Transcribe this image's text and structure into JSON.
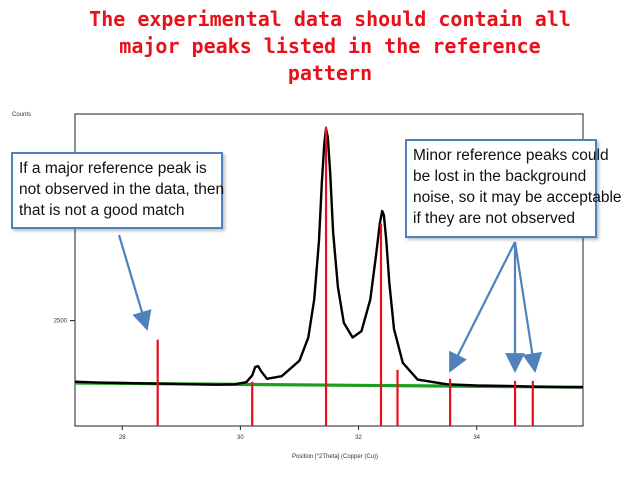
{
  "title": {
    "lines": [
      "The experimental data should contain all",
      "major peaks listed in the reference",
      "pattern"
    ]
  },
  "colors": {
    "title": "#e8101a",
    "experimental": "#000000",
    "background_line": "#1e9e1e",
    "reference": "#e8101a",
    "callout_border": "#4f81bd",
    "arrow": "#4f81bd"
  },
  "callouts": {
    "left": {
      "lines": [
        "If a major reference peak is",
        "not observed in the data, then",
        "that is not a good match"
      ]
    },
    "right": {
      "lines": [
        "Minor reference peaks could",
        "be lost in the background",
        "noise, so it may be acceptable",
        "if they are not observed"
      ]
    }
  },
  "chart_data": {
    "type": "line",
    "ylabel": "Counts",
    "xlabel": "Position [°2Theta] (Copper (Cu))",
    "xlim": [
      27.2,
      35.8
    ],
    "ylim": [
      0,
      7400
    ],
    "x_ticks": [
      "28",
      "30",
      "32",
      "34"
    ],
    "x_tick_values": [
      28,
      30,
      32,
      34
    ],
    "y_ticks": [
      "2500"
    ],
    "y_tick_values": [
      2500
    ],
    "grid": false,
    "series": [
      {
        "role": "experimental",
        "x": [
          27.2,
          27.6,
          28.0,
          28.4,
          28.8,
          29.2,
          29.6,
          29.9,
          30.1,
          30.2,
          30.25,
          30.3,
          30.35,
          30.45,
          30.7,
          31.0,
          31.15,
          31.25,
          31.33,
          31.38,
          31.42,
          31.45,
          31.48,
          31.52,
          31.57,
          31.65,
          31.75,
          31.9,
          32.05,
          32.2,
          32.3,
          32.36,
          32.4,
          32.43,
          32.47,
          32.52,
          32.6,
          32.75,
          33.0,
          33.5,
          34.0,
          34.5,
          35.0,
          35.5,
          35.8
        ],
        "y": [
          1050,
          1030,
          1020,
          1010,
          1000,
          990,
          980,
          990,
          1040,
          1200,
          1400,
          1420,
          1300,
          1120,
          1180,
          1550,
          2100,
          3000,
          4400,
          5800,
          6700,
          7050,
          6850,
          6000,
          4600,
          3300,
          2450,
          2100,
          2250,
          3000,
          4100,
          4800,
          5100,
          5000,
          4400,
          3400,
          2300,
          1500,
          1100,
          990,
          960,
          950,
          930,
          920,
          920
        ]
      },
      {
        "role": "background",
        "x": [
          27.2,
          35.8
        ],
        "y": [
          1020,
          920
        ]
      }
    ],
    "reference_peaks": {
      "x": [
        28.6,
        30.2,
        31.45,
        32.38,
        32.66,
        33.55,
        34.65,
        34.95
      ],
      "y": [
        2050,
        1050,
        7100,
        4800,
        1330,
        1120,
        1070,
        1070
      ]
    }
  }
}
